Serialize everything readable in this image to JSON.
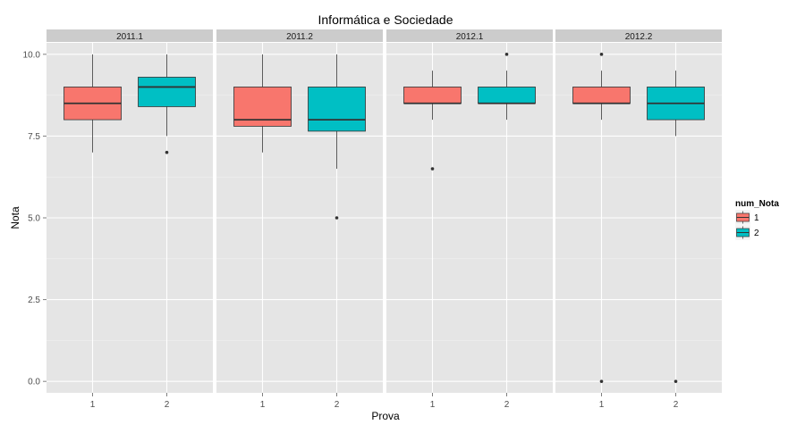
{
  "chart_data": {
    "type": "boxplot",
    "title": "Informática e Sociedade",
    "xlabel": "Prova",
    "ylabel": "Nota",
    "ylim": [
      -0.35,
      10.35
    ],
    "y_ticks": [
      0.0,
      2.5,
      5.0,
      7.5,
      10.0
    ],
    "y_tick_labels": [
      "0.0",
      "2.5",
      "5.0",
      "7.5",
      "10.0"
    ],
    "x_categories": [
      "1",
      "2"
    ],
    "grid": true,
    "legend": {
      "title": "num_Nota",
      "position": "right",
      "entries": [
        {
          "label": "1",
          "color": "#F8766D"
        },
        {
          "label": "2",
          "color": "#00BFC4"
        }
      ]
    },
    "colors": {
      "panel_bg": "#E5E5E5",
      "strip_bg": "#CCCCCC",
      "grid_major": "#FFFFFF",
      "grid_minor": "#F2F2F2",
      "axis_text": "#4D4D4D",
      "box_line": "#333333",
      "series_1": "#F8766D",
      "series_2": "#00BFC4"
    },
    "panels": [
      {
        "label": "2011.1",
        "boxes": [
          {
            "category": "1",
            "series": "1",
            "whisker_low": 7.0,
            "q1": 8.0,
            "median": 8.5,
            "q3": 9.0,
            "whisker_high": 10.0,
            "outliers": []
          },
          {
            "category": "2",
            "series": "2",
            "whisker_low": 7.5,
            "q1": 8.4,
            "median": 9.0,
            "q3": 9.3,
            "whisker_high": 10.0,
            "outliers": [
              7.0
            ]
          }
        ]
      },
      {
        "label": "2011.2",
        "boxes": [
          {
            "category": "1",
            "series": "1",
            "whisker_low": 7.0,
            "q1": 7.8,
            "median": 8.0,
            "q3": 9.0,
            "whisker_high": 10.0,
            "outliers": []
          },
          {
            "category": "2",
            "series": "2",
            "whisker_low": 6.5,
            "q1": 7.65,
            "median": 8.0,
            "q3": 9.0,
            "whisker_high": 10.0,
            "outliers": [
              5.0
            ]
          }
        ]
      },
      {
        "label": "2012.1",
        "boxes": [
          {
            "category": "1",
            "series": "1",
            "whisker_low": 8.0,
            "q1": 8.5,
            "median": 8.5,
            "q3": 9.0,
            "whisker_high": 9.5,
            "outliers": [
              6.5
            ]
          },
          {
            "category": "2",
            "series": "2",
            "whisker_low": 8.0,
            "q1": 8.5,
            "median": 8.5,
            "q3": 9.0,
            "whisker_high": 9.5,
            "outliers": [
              10.0
            ]
          }
        ]
      },
      {
        "label": "2012.2",
        "boxes": [
          {
            "category": "1",
            "series": "1",
            "whisker_low": 8.0,
            "q1": 8.5,
            "median": 8.5,
            "q3": 9.0,
            "whisker_high": 9.5,
            "outliers": [
              10.0,
              0.0
            ]
          },
          {
            "category": "2",
            "series": "2",
            "whisker_low": 7.5,
            "q1": 8.0,
            "median": 8.5,
            "q3": 9.0,
            "whisker_high": 9.5,
            "outliers": [
              0.0
            ]
          }
        ]
      }
    ]
  }
}
